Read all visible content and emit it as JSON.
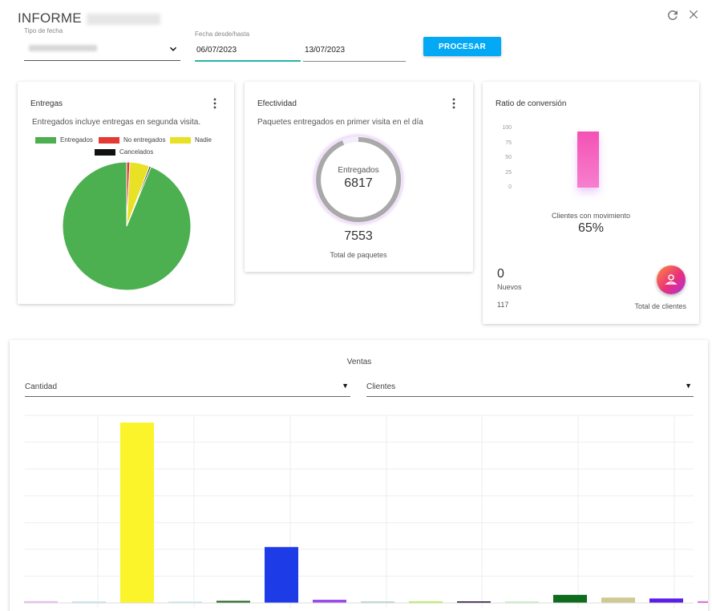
{
  "header": {
    "title": "INFORME"
  },
  "filters": {
    "tipo_fecha_label": "Tipo de fecha",
    "fecha_label": "Fecha desde/hasta",
    "fecha_desde": "06/07/2023",
    "fecha_hasta": "13/07/2023",
    "procesar_label": "PROCESAR"
  },
  "entregas": {
    "title": "Entregas",
    "subtitle": "Entregados incluye entregas en segunda visita.",
    "legend": [
      {
        "label": "Entregados",
        "color": "#4caf50"
      },
      {
        "label": "No entregados",
        "color": "#e53935"
      },
      {
        "label": "Nadie",
        "color": "#e8e125"
      },
      {
        "label": "Cancelados",
        "color": "#111111"
      }
    ]
  },
  "efectividad": {
    "title": "Efectividad",
    "subtitle": "Paquetes entregados en primer visita en el día",
    "ring_label": "Entregados",
    "ring_value": "6817",
    "total_value": "7553",
    "total_label": "Total de paquetes"
  },
  "conversion": {
    "title": "Ratio de conversión",
    "y_ticks": [
      "100",
      "75",
      "50",
      "25",
      "0"
    ],
    "bar_value": 95,
    "bar_color": "#f452b4",
    "bar_label": "Clientes con movimiento",
    "bar_percent": "65%",
    "nuevos_value": "0",
    "nuevos_label": "Nuevos",
    "total_value": "117",
    "total_label": "Total de clientes"
  },
  "ventas": {
    "title": "Ventas",
    "select_metric": "Cantidad",
    "select_group": "Clientes"
  },
  "chart_data": [
    {
      "type": "pie",
      "title": "Entregas",
      "categories": [
        "Entregados",
        "No entregados",
        "Nadie",
        "Cancelados"
      ],
      "values": [
        93.8,
        0.8,
        5.0,
        0.4
      ],
      "colors": [
        "#4caf50",
        "#e53935",
        "#e8e125",
        "#111111"
      ]
    },
    {
      "type": "bar",
      "title": "Ventas",
      "values": [
        1,
        0.5,
        100,
        0.5,
        1.2,
        31,
        1.8,
        0.5,
        0.8,
        0.7,
        0.5,
        4.5,
        3,
        2.5,
        1
      ],
      "colors": [
        "#e8b8f0",
        "#c7e3ee",
        "#fbf42b",
        "#cfe9f2",
        "#2c6b2c",
        "#1d3be6",
        "#9a4de6",
        "#b8d6c8",
        "#b2f04a",
        "#2a0e3a",
        "#c6f0c6",
        "#0f6b1e",
        "#cfc992",
        "#5b1ee6",
        "#d77ad8"
      ]
    }
  ]
}
